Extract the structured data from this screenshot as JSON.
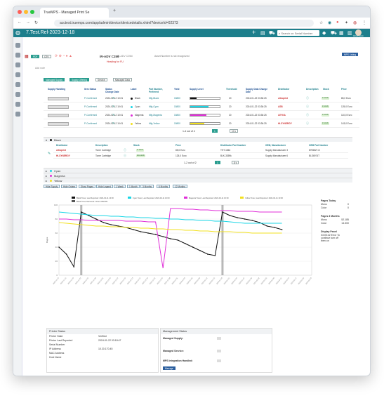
{
  "browser": {
    "tab_title": "TrueMPS - Managed Print Se",
    "url": "acctest.truemps.com/app/admin/device/devicedetails.xhtml?deviceId=02373"
  },
  "app": {
    "title": "7.Test.Rel-2023-12-18",
    "search_placeholder": "Search on Serial Number",
    "mps_listing": "MPS Listing",
    "user": "Admin Admin"
  },
  "device": {
    "pdf_label": "PDF",
    "csv_label": "CSV",
    "model": "iR-ADV C256",
    "model_sub": "iR-ADV C256i",
    "asset_note": "Asset Number is not recognized",
    "heading": "Heading for FU",
    "add_note": "Add note"
  },
  "tabs": [
    "Managed Supply",
    "Supply Offering",
    "Service",
    "Managed Data"
  ],
  "supply_table": {
    "headers": [
      "Supply Handling",
      "Item Status",
      "Status Change Date",
      "Label",
      "Part Number, Preferred",
      "Yield",
      "Supply Level",
      "Threshold",
      "Supply Data Change Date",
      "Distributor",
      "Description",
      "Stock",
      "Price"
    ],
    "rows": [
      {
        "status": "P-Confirmed",
        "date": "2024-02-12 10:01",
        "label": "Black",
        "part": "Mfg-Black",
        "yield": "15800",
        "threshold": "20",
        "data_date": "2024-01-22 03:36:25",
        "distributor": "ultraprint",
        "stock": "in stock",
        "price": "85,0 Euro",
        "color": "#111111",
        "level": 0.22
      },
      {
        "status": "P-Confirmed",
        "date": "2024-02-12 10:01",
        "label": "Cyan",
        "part": "Mfg-Cyan",
        "yield": "15800",
        "threshold": "20",
        "data_date": "2024-01-22 03:36:25",
        "distributor": "ASB",
        "stock": "in stock",
        "price": "125,0 Euro",
        "color": "#19d6e6",
        "level": 0.62
      },
      {
        "status": "P-Confirmed",
        "date": "2024-02-12 10:01",
        "label": "Magenta",
        "part": "Mfg-Magenta",
        "yield": "15800",
        "threshold": "20",
        "data_date": "2024-01-22 03:36:25",
        "distributor": "LEYKA",
        "stock": "in stock",
        "price": "110,0 Euro",
        "color": "#e02fd8",
        "level": 0.55
      },
      {
        "status": "P-Confirmed",
        "date": "2024-02-12 10:01",
        "label": "Yellow",
        "part": "Mfg-Yellow",
        "yield": "15800",
        "threshold": "20",
        "data_date": "2024-01-22 03:36:25",
        "distributor": "HI-SYNERGY",
        "stock": "in stock",
        "price": "143,0 Euro",
        "color": "#f2e01f",
        "level": 0.48
      }
    ],
    "pager": "1-4 out of 4",
    "page_size": "10"
  },
  "black_detail": {
    "title": "Black",
    "headers": [
      "Distributor",
      "Description",
      "Stock",
      "Price",
      "Distributor Part Number",
      "OEM, Manufacturer",
      "OEM Part Number"
    ],
    "rows": [
      {
        "distributor": "ultraprint",
        "description": "Toner Cartridge",
        "stock": "in stock",
        "price": "85,0 Euro",
        "part": "THT-1664",
        "oem": "Supply Manufacturer 3",
        "oem_part": "8755827-D"
      },
      {
        "distributor": "HI-SYNERGY",
        "description": "Toner Cartridge",
        "stock": "low stock",
        "price": "125,0 Euro",
        "part": "BLK-3359k",
        "oem": "Supply Manufacturer 6",
        "oem_part": "BLS6974T"
      }
    ],
    "pager": "1-2 out of 2",
    "page_size": "5"
  },
  "collapsed": [
    "Cyan",
    "Magenta",
    "Yellow"
  ],
  "chart_buttons": [
    "Hide Supply",
    "Hide Orders",
    "Show Pages",
    "Hide Legend",
    "1 Week",
    "1 Month",
    "3 Months",
    "6 Months",
    "12 Months"
  ],
  "chart_legend": [
    "Black Toner, Last Reported: 2024-02-11 10:00",
    "Cyan Toner, Last Reported: 2024-02-11 10:00",
    "Magenta Toner, Last Reported: 2024-02-11 10:00",
    "Yellow Toner, Last Reported: 2024-02-11 10:00",
    "Black Toner Delivered: Order 3456789"
  ],
  "chart_ylabel": "Pages",
  "chart_data": {
    "type": "line",
    "x": [
      "2023-11-13",
      "2023-11-16",
      "2023-11-19",
      "2023-11-22",
      "2023-11-25",
      "2023-11-28",
      "2023-12-01",
      "2023-12-04",
      "2023-12-07",
      "2023-12-10",
      "2023-12-13",
      "2023-12-16",
      "2023-12-19",
      "2023-12-22",
      "2023-12-25",
      "2023-12-28",
      "2023-12-31",
      "2024-01-03",
      "2024-01-06",
      "2024-01-09",
      "2024-01-12",
      "2024-01-15",
      "2024-01-18",
      "2024-01-21",
      "2024-01-24",
      "2024-01-27",
      "2024-01-30",
      "2024-02-02",
      "2024-02-05",
      "2024-02-08",
      "2024-02-11",
      "2024-02-14",
      "2024-02-17",
      "2024-02-20",
      "2024-02-23"
    ],
    "series": [
      {
        "name": "Black Toner",
        "color": "#111111",
        "values": [
          40,
          30,
          12,
          90,
          85,
          80,
          75,
          72,
          70,
          68,
          65,
          62,
          60,
          58,
          55,
          52,
          50,
          45,
          40,
          35,
          30,
          28,
          90,
          85,
          82,
          80,
          78,
          75,
          70,
          68,
          65,
          null,
          null,
          null,
          null
        ]
      },
      {
        "name": "Cyan Toner",
        "color": "#19d6e6",
        "values": [
          90,
          89,
          88,
          87,
          86,
          85,
          85,
          84,
          84,
          83,
          83,
          82,
          82,
          81,
          81,
          80,
          80,
          79,
          79,
          78,
          78,
          77,
          77,
          76,
          75,
          74,
          74,
          74,
          74,
          74,
          74,
          null,
          null,
          null,
          null
        ]
      },
      {
        "name": "Magenta Toner",
        "color": "#e02fd8",
        "values": [
          80,
          80,
          79,
          79,
          78,
          78,
          78,
          78,
          78,
          77,
          77,
          77,
          76,
          76,
          10,
          95,
          95,
          94,
          94,
          93,
          93,
          92,
          92,
          92,
          91,
          91,
          91,
          90,
          90,
          90,
          90,
          null,
          null,
          null,
          null
        ]
      },
      {
        "name": "Yellow Toner",
        "color": "#f2e01f",
        "values": [
          75,
          74,
          73,
          72,
          71,
          70,
          70,
          69,
          69,
          68,
          68,
          67,
          67,
          66,
          66,
          65,
          65,
          64,
          64,
          63,
          63,
          62,
          62,
          62,
          61,
          61,
          60,
          60,
          60,
          60,
          60,
          null,
          null,
          null,
          null
        ]
      }
    ],
    "ylim": [
      0,
      100
    ],
    "ylabel": "Pages"
  },
  "pages_stats": {
    "today_title": "Pages Today",
    "today": [
      [
        "Mono",
        "0"
      ],
      [
        "Color",
        "0"
      ]
    ],
    "month_title": "Pages 3 Months",
    "month": [
      [
        "Mono",
        "52.185"
      ],
      [
        "Color",
        "14.300"
      ]
    ],
    "display_title": "Display Panel",
    "display_text": "03:05:42 Error To continue turn off then on"
  },
  "printer_status": {
    "title": "Printer Status",
    "rows": [
      [
        "Printer State",
        "Verified"
      ],
      [
        "Printer Last Reported",
        "2024-01-22 03:18:47"
      ],
      [
        "Serial Number",
        ""
      ],
      [
        "IP Address",
        "10.20.170.45"
      ],
      [
        "MAC Address",
        ""
      ],
      [
        "Host Name",
        ""
      ]
    ]
  },
  "management_status": {
    "title": "Management Status",
    "managed_supply": "Managed Supply:",
    "managed_service": "Managed Service:",
    "mps_integration": "MPS Integration Handled:",
    "manage_button": "Manage"
  }
}
